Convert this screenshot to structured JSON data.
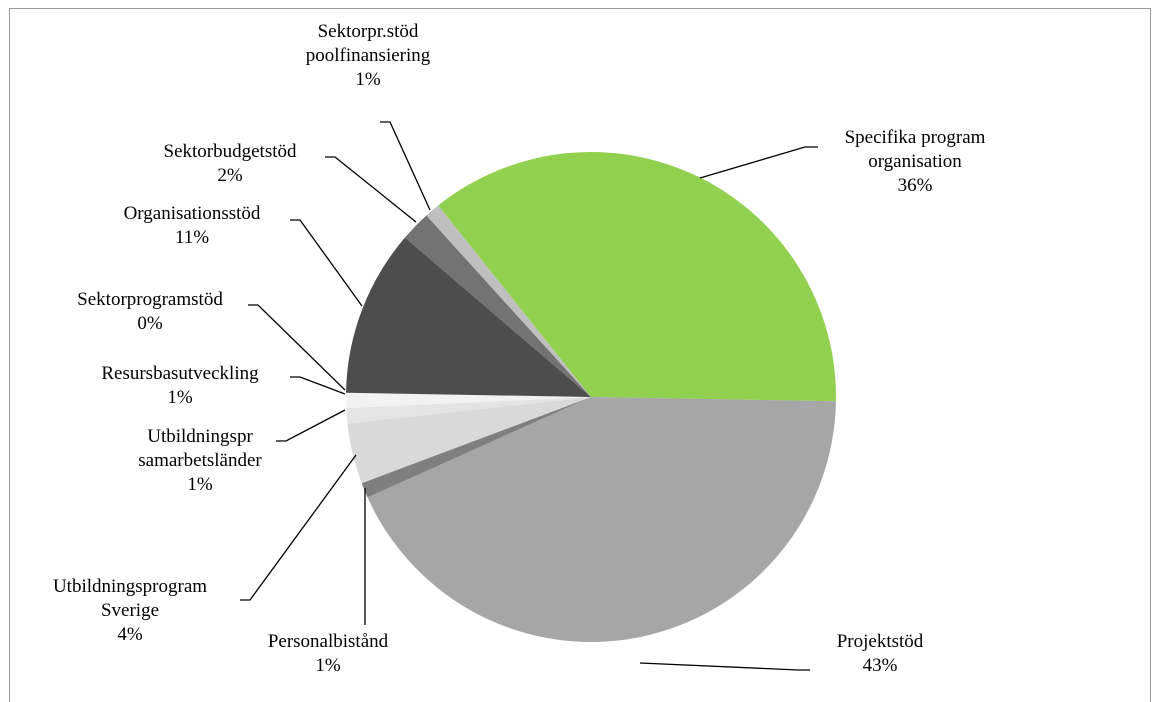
{
  "chart_data": {
    "type": "pie",
    "categories": [
      "Specifika program organisation",
      "Projektstöd",
      "Personalbistånd",
      "Utbildningsprogram Sverige",
      "Utbildningspr samarbetsländer",
      "Resursbasutveckling",
      "Sektorprogramstöd",
      "Organisationsstöd",
      "Sektorbudgetstöd",
      "Sektorpr.stöd poolfinansiering"
    ],
    "values": [
      36,
      43,
      1,
      4,
      1,
      1,
      0,
      11,
      2,
      1
    ],
    "value_labels": [
      "36%",
      "43%",
      "1%",
      "4%",
      "1%",
      "1%",
      "0%",
      "11%",
      "2%",
      "1%"
    ],
    "colors": [
      "#92d050",
      "#a6a6a6",
      "#7f7f7f",
      "#d9d9d9",
      "#e4e4e4",
      "#f2f2f2",
      "#bfbfbf",
      "#4d4d4d",
      "#737373",
      "#bfbfbf"
    ]
  }
}
